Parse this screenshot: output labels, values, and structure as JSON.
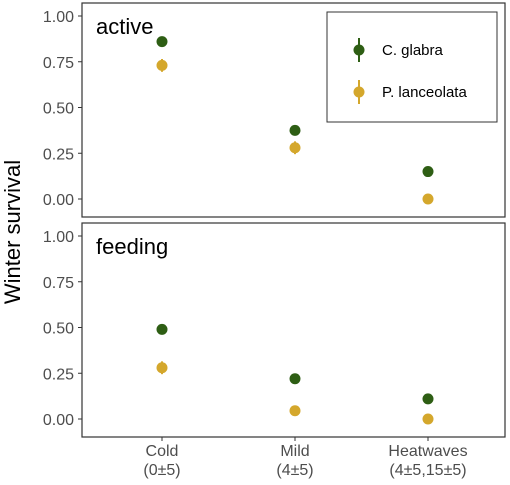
{
  "chart_data": {
    "type": "scatter",
    "ylabel": "Winter survival",
    "xlabel": "",
    "categories": [
      [
        "Cold",
        "(0±5)"
      ],
      [
        "Mild",
        "(4±5)"
      ],
      [
        "Heatwaves",
        "(4±5,15±5)"
      ]
    ],
    "ylim": [
      0,
      1
    ],
    "yticks": [
      "0.00",
      "0.25",
      "0.50",
      "0.75",
      "1.00"
    ],
    "grid": false,
    "legend_position": "top-right",
    "panels": [
      {
        "label": "active",
        "series": [
          {
            "name": "C. glabra",
            "color": "#2e5e14",
            "values": [
              0.86,
              0.375,
              0.15
            ],
            "error": [
              0.01,
              0.01,
              0.01
            ]
          },
          {
            "name": "P. lanceolata",
            "color": "#d4a72c",
            "values": [
              0.73,
              0.28,
              0.0
            ],
            "error": [
              0.035,
              0.035,
              0.005
            ]
          }
        ]
      },
      {
        "label": "feeding",
        "series": [
          {
            "name": "C. glabra",
            "color": "#2e5e14",
            "values": [
              0.49,
              0.22,
              0.11
            ],
            "error": [
              0.01,
              0.01,
              0.01
            ]
          },
          {
            "name": "P. lanceolata",
            "color": "#d4a72c",
            "values": [
              0.28,
              0.045,
              0.0
            ],
            "error": [
              0.035,
              0.01,
              0.005
            ]
          }
        ]
      }
    ]
  }
}
